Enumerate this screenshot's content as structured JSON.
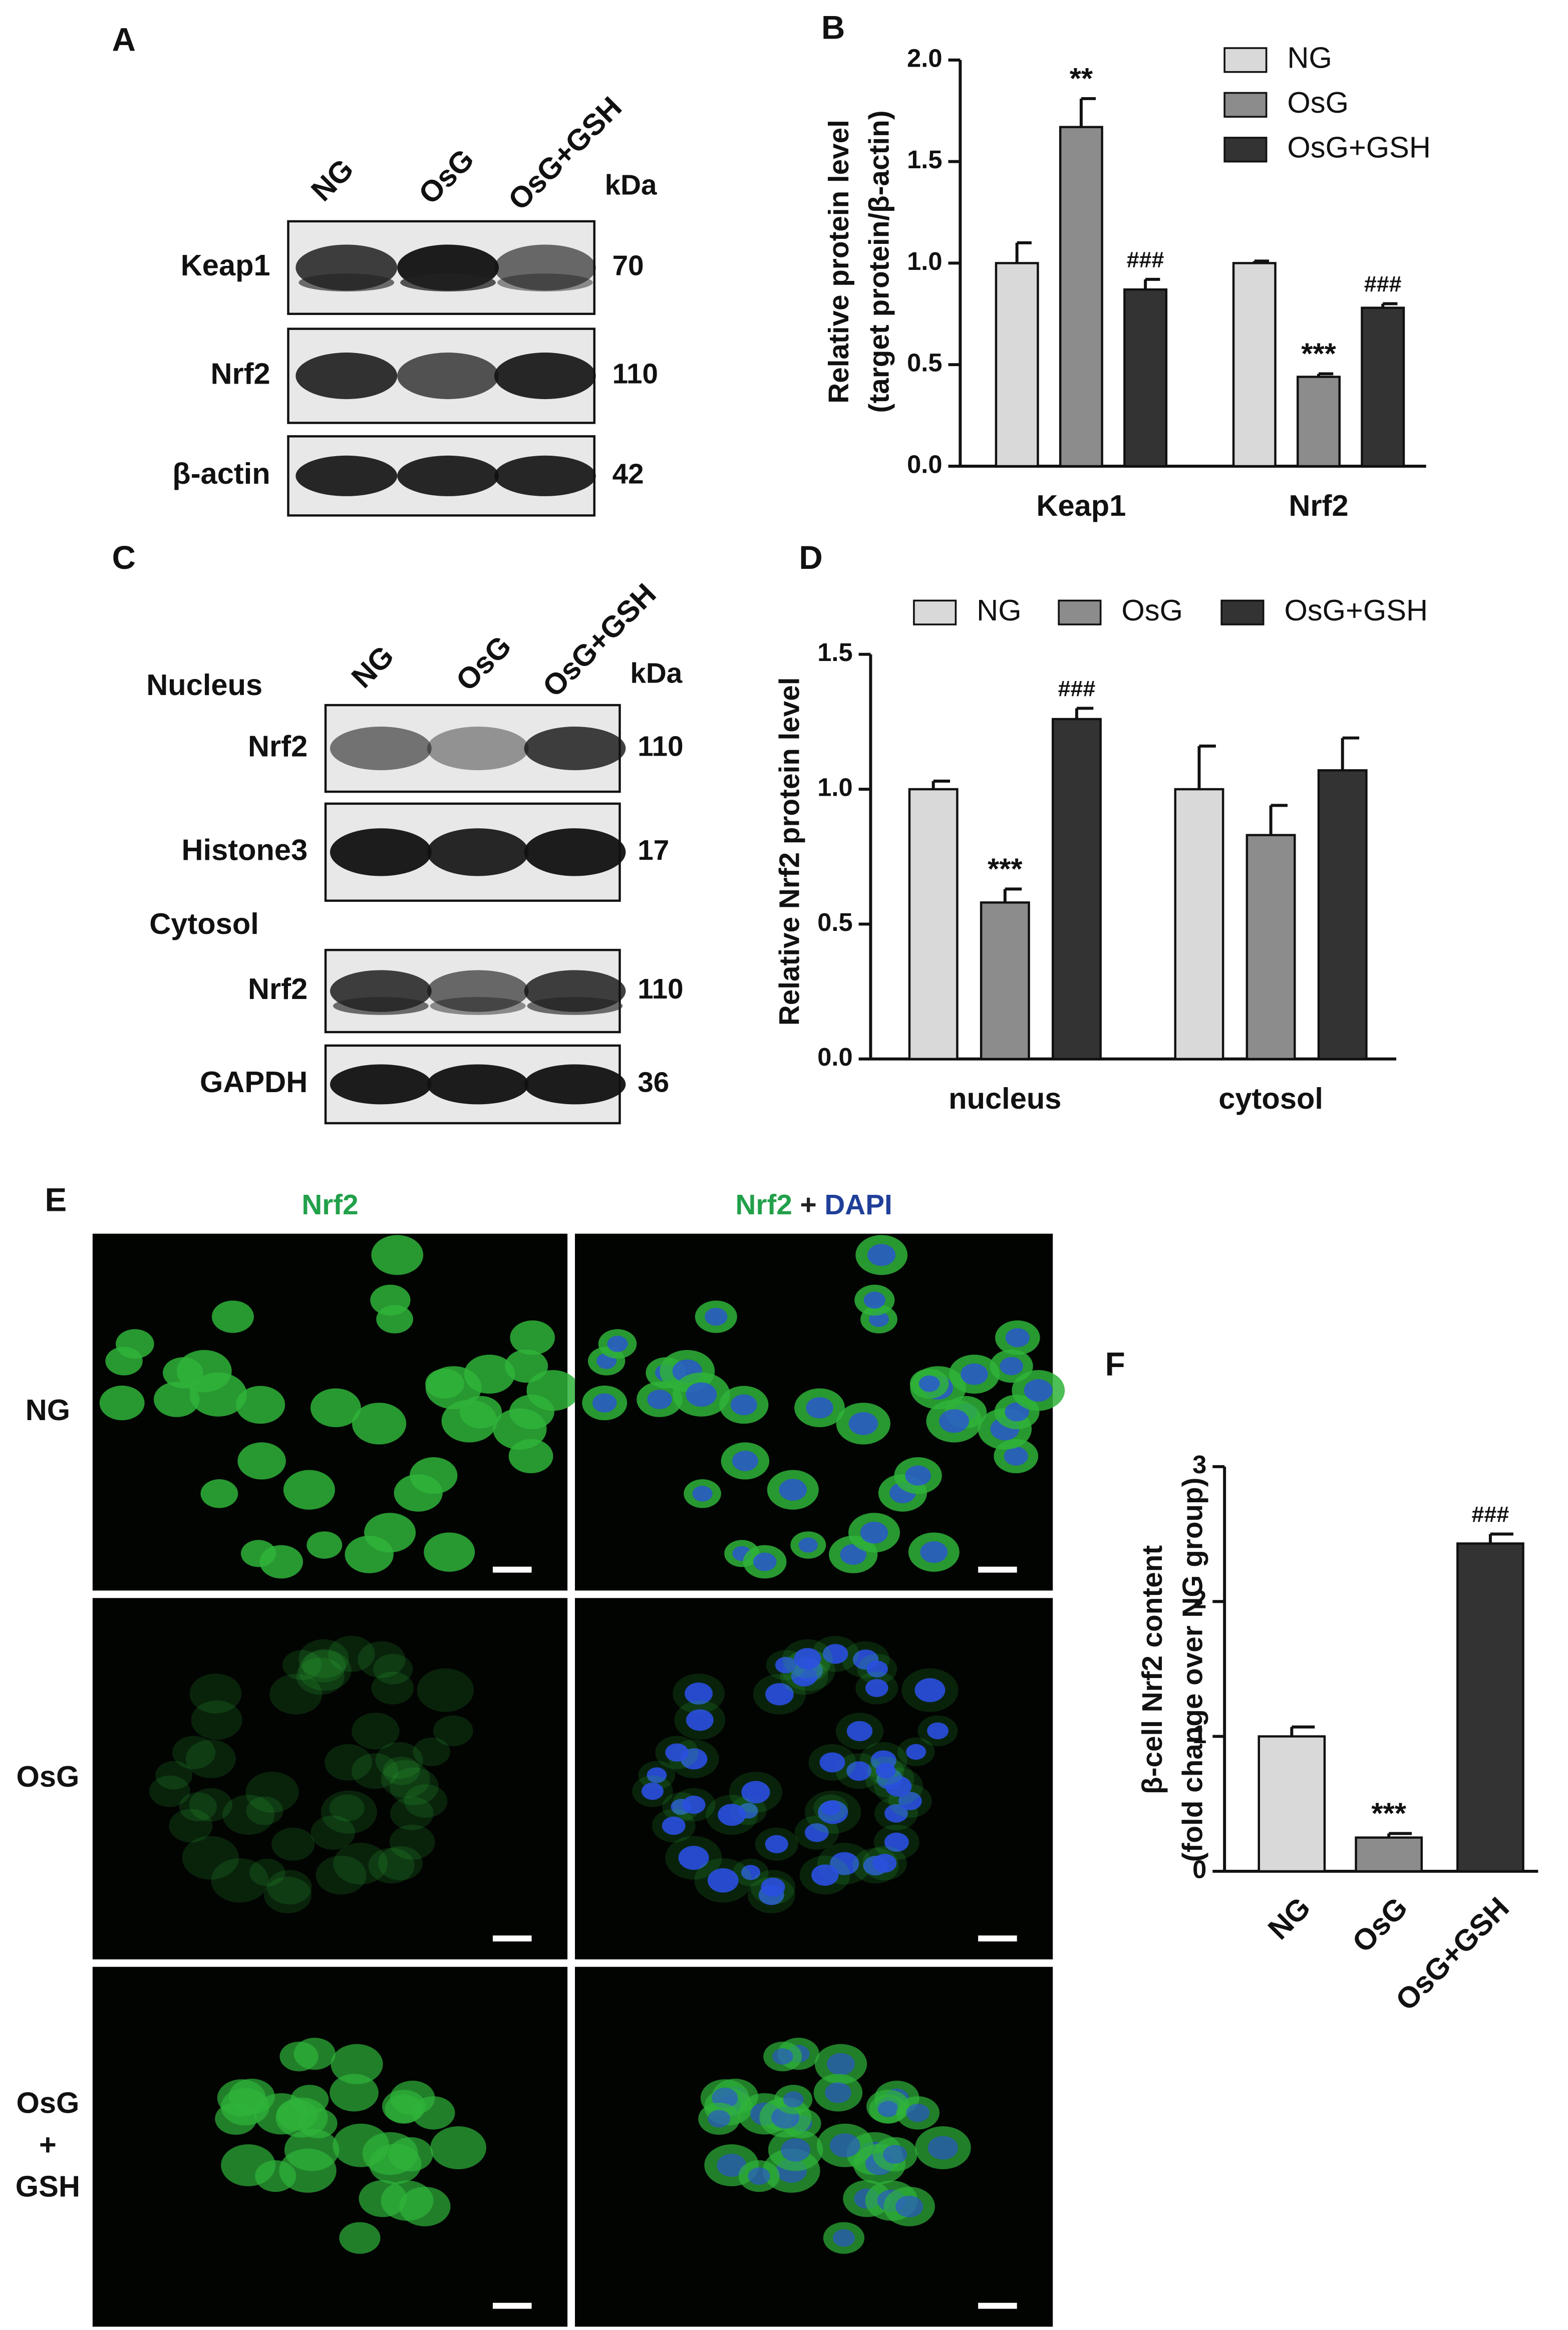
{
  "panel_labels": [
    "A",
    "B",
    "C",
    "D",
    "E",
    "F"
  ],
  "blot_a": {
    "lanes": [
      "NG",
      "OsG",
      "OsG+GSH"
    ],
    "unit": "kDa",
    "rows": [
      {
        "name": "Keap1",
        "kda": 70
      },
      {
        "name": "Nrf2",
        "kda": 110
      },
      {
        "name": "β-actin",
        "kda": 42
      }
    ]
  },
  "blot_c": {
    "lanes": [
      "NG",
      "OsG",
      "OsG+GSH"
    ],
    "unit": "kDa",
    "sections": [
      {
        "name": "Nucleus",
        "rows": [
          {
            "name": "Nrf2",
            "kda": 110
          },
          {
            "name": "Histone3",
            "kda": 17
          }
        ]
      },
      {
        "name": "Cytosol",
        "rows": [
          {
            "name": "Nrf2",
            "kda": 110
          },
          {
            "name": "GAPDH",
            "kda": 36
          }
        ]
      }
    ]
  },
  "imaging": {
    "columns": [
      [
        {
          "text": "Nrf2",
          "color": "#22a04a"
        }
      ],
      [
        {
          "text": "Nrf2",
          "color": "#22a04a"
        },
        {
          "text": "+",
          "color": "#222222"
        },
        {
          "text": "DAPI",
          "color": "#1f3f99"
        }
      ]
    ],
    "rows": [
      [
        "NG"
      ],
      [
        "OsG"
      ],
      [
        "OsG",
        "+",
        "GSH"
      ]
    ]
  },
  "chart_data": [
    {
      "type": "bar",
      "ylabel": [
        "Relative protein level",
        "(target protein/β-actin)"
      ],
      "categories": [
        "Keap1",
        "Nrf2"
      ],
      "legend": "upper right",
      "series": [
        {
          "name": "NG",
          "color": "#d9d9d9",
          "values": [
            1.0,
            1.0
          ],
          "errors": [
            0.1,
            0.01
          ]
        },
        {
          "name": "OsG",
          "color": "#8c8c8c",
          "values": [
            1.67,
            0.44
          ],
          "errors": [
            0.14,
            0.015
          ],
          "annotations": [
            "**",
            "***"
          ]
        },
        {
          "name": "OsG+GSH",
          "color": "#333333",
          "values": [
            0.87,
            0.78
          ],
          "errors": [
            0.05,
            0.02
          ],
          "annotations": [
            "###",
            "###"
          ]
        }
      ],
      "ylim": [
        0,
        2
      ],
      "yticks": [
        {
          "value": 0,
          "label": "0.0"
        },
        {
          "value": 0.5,
          "label": "0.5"
        },
        {
          "value": 1,
          "label": "1.0"
        },
        {
          "value": 1.5,
          "label": "1.5"
        },
        {
          "value": 2,
          "label": "2.0"
        }
      ]
    },
    {
      "type": "bar",
      "ylabel": [
        "Relative Nrf2 protein level"
      ],
      "categories": [
        "nucleus",
        "cytosol"
      ],
      "legend": "top",
      "series": [
        {
          "name": "NG",
          "color": "#d9d9d9",
          "values": [
            1.0,
            1.0
          ],
          "errors": [
            0.03,
            0.16
          ]
        },
        {
          "name": "OsG",
          "color": "#8c8c8c",
          "values": [
            0.58,
            0.83
          ],
          "errors": [
            0.05,
            0.11
          ],
          "annotations": [
            "***",
            null
          ]
        },
        {
          "name": "OsG+GSH",
          "color": "#333333",
          "values": [
            1.26,
            1.07
          ],
          "errors": [
            0.04,
            0.12
          ],
          "annotations": [
            "###",
            null
          ]
        }
      ],
      "ylim": [
        0,
        1.5
      ],
      "yticks": [
        {
          "value": 0,
          "label": "0.0"
        },
        {
          "value": 0.5,
          "label": "0.5"
        },
        {
          "value": 1,
          "label": "1.0"
        },
        {
          "value": 1.5,
          "label": "1.5"
        }
      ]
    },
    {
      "type": "bar",
      "ylabel": [
        "β-cell Nrf2 content",
        "(fold change over NG group)"
      ],
      "categories": [
        "NG",
        "OsG",
        "OsG+GSH"
      ],
      "values": [
        1.0,
        0.25,
        2.43
      ],
      "errors": [
        0.07,
        0.03,
        0.07
      ],
      "colors": [
        "#d9d9d9",
        "#8c8c8c",
        "#333333"
      ],
      "annotations": [
        null,
        "***",
        "###"
      ],
      "ylim": [
        0,
        3
      ],
      "yticks": [
        0,
        1,
        2,
        3
      ]
    }
  ]
}
